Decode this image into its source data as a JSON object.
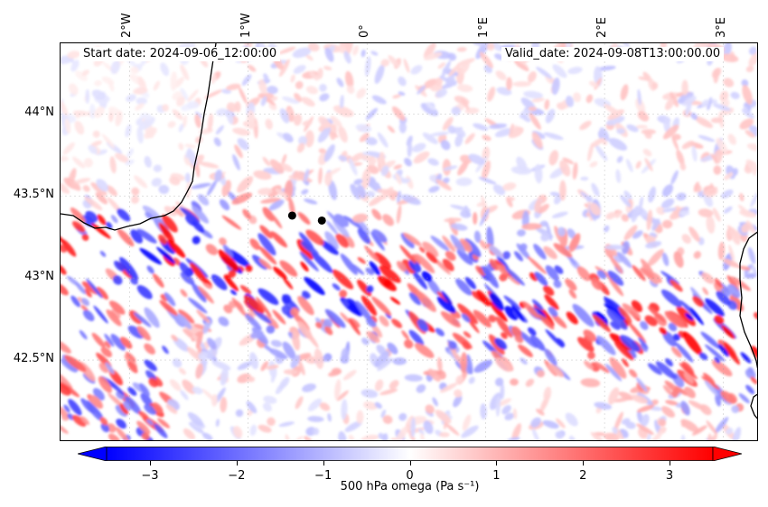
{
  "map": {
    "start_date": "Start date: 2024-09-06_12:00:00",
    "valid_date": "Valid_date: 2024-09-08T13:00:00.00",
    "lon_ticks": [
      "2°W",
      "1°W",
      "0°",
      "1°E",
      "2°E",
      "3°E"
    ],
    "lon_values": [
      -2,
      -1,
      0,
      1,
      2,
      3
    ],
    "lat_ticks": [
      "44°N",
      "43.5°N",
      "43°N",
      "42.5°N"
    ],
    "lat_values": [
      44.0,
      43.5,
      43.0,
      42.5
    ],
    "extent": {
      "lon_min": -2.58,
      "lon_max": 3.3,
      "lat_min": 42.0,
      "lat_max": 44.43
    },
    "markers": [
      {
        "name": "point-1",
        "lon": -0.63,
        "lat": 43.38
      },
      {
        "name": "point-2",
        "lon": -0.38,
        "lat": 43.35
      }
    ],
    "field": "500 hPa omega",
    "colors": {
      "negative": "#0000ff",
      "positive": "#ff0000",
      "zero": "#ffffff",
      "coast": "#000000",
      "marker": "#000000"
    }
  },
  "colorbar": {
    "label": "500 hPa omega (Pa s⁻¹)",
    "ticks": [
      "−3",
      "−2",
      "−1",
      "0",
      "1",
      "2",
      "3"
    ],
    "tick_values": [
      -3,
      -2,
      -1,
      0,
      1,
      2,
      3
    ],
    "vmin": -3.5,
    "vmax": 3.5,
    "colormap": "bwr",
    "extend": "both"
  }
}
